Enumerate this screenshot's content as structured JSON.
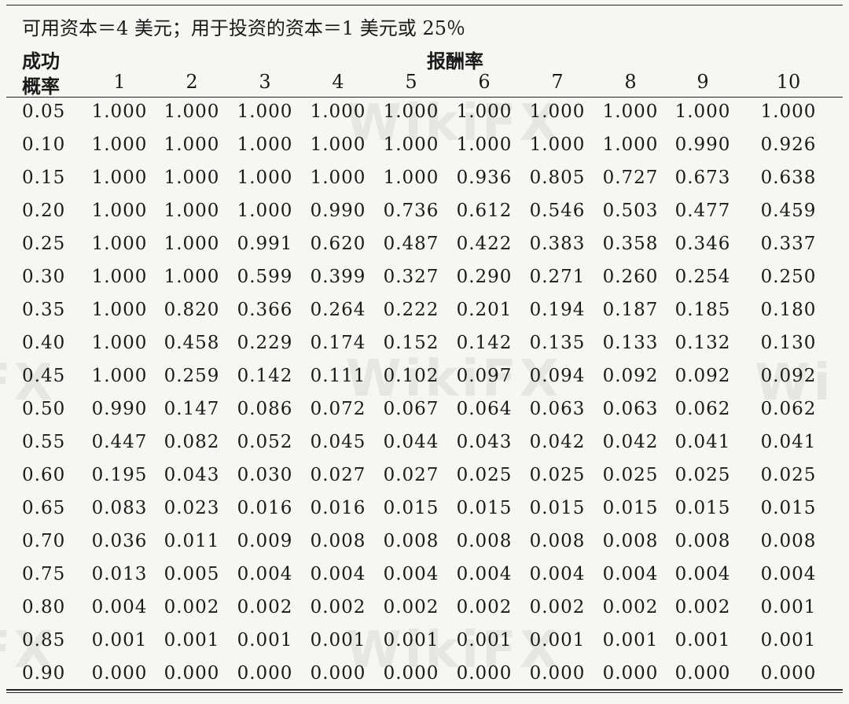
{
  "caption": "可用资本＝4 美元；用于投资的资本＝1 美元或 25％",
  "row_header": {
    "line1": "成功",
    "line2": "概率"
  },
  "column_group_label": "报酬率",
  "column_headers": [
    "1",
    "2",
    "3",
    "4",
    "5",
    "6",
    "7",
    "8",
    "9",
    "10"
  ],
  "rows": [
    {
      "prob": "0.05",
      "values": [
        "1.000",
        "1.000",
        "1.000",
        "1.000",
        "1.000",
        "1.000",
        "1.000",
        "1.000",
        "1.000",
        "1.000"
      ]
    },
    {
      "prob": "0.10",
      "values": [
        "1.000",
        "1.000",
        "1.000",
        "1.000",
        "1.000",
        "1.000",
        "1.000",
        "1.000",
        "0.990",
        "0.926"
      ]
    },
    {
      "prob": "0.15",
      "values": [
        "1.000",
        "1.000",
        "1.000",
        "1.000",
        "1.000",
        "0.936",
        "0.805",
        "0.727",
        "0.673",
        "0.638"
      ]
    },
    {
      "prob": "0.20",
      "values": [
        "1.000",
        "1.000",
        "1.000",
        "0.990",
        "0.736",
        "0.612",
        "0.546",
        "0.503",
        "0.477",
        "0.459"
      ]
    },
    {
      "prob": "0.25",
      "values": [
        "1.000",
        "1.000",
        "0.991",
        "0.620",
        "0.487",
        "0.422",
        "0.383",
        "0.358",
        "0.346",
        "0.337"
      ]
    },
    {
      "prob": "0.30",
      "values": [
        "1.000",
        "1.000",
        "0.599",
        "0.399",
        "0.327",
        "0.290",
        "0.271",
        "0.260",
        "0.254",
        "0.250"
      ]
    },
    {
      "prob": "0.35",
      "values": [
        "1.000",
        "0.820",
        "0.366",
        "0.264",
        "0.222",
        "0.201",
        "0.194",
        "0.187",
        "0.185",
        "0.180"
      ]
    },
    {
      "prob": "0.40",
      "values": [
        "1.000",
        "0.458",
        "0.229",
        "0.174",
        "0.152",
        "0.142",
        "0.135",
        "0.133",
        "0.132",
        "0.130"
      ]
    },
    {
      "prob": "0.45",
      "values": [
        "1.000",
        "0.259",
        "0.142",
        "0.111",
        "0.102",
        "0.097",
        "0.094",
        "0.092",
        "0.092",
        "0.092"
      ]
    },
    {
      "prob": "0.50",
      "values": [
        "0.990",
        "0.147",
        "0.086",
        "0.072",
        "0.067",
        "0.064",
        "0.063",
        "0.063",
        "0.062",
        "0.062"
      ]
    },
    {
      "prob": "0.55",
      "values": [
        "0.447",
        "0.082",
        "0.052",
        "0.045",
        "0.044",
        "0.043",
        "0.042",
        "0.042",
        "0.041",
        "0.041"
      ]
    },
    {
      "prob": "0.60",
      "values": [
        "0.195",
        "0.043",
        "0.030",
        "0.027",
        "0.027",
        "0.025",
        "0.025",
        "0.025",
        "0.025",
        "0.025"
      ]
    },
    {
      "prob": "0.65",
      "values": [
        "0.083",
        "0.023",
        "0.016",
        "0.016",
        "0.015",
        "0.015",
        "0.015",
        "0.015",
        "0.015",
        "0.015"
      ]
    },
    {
      "prob": "0.70",
      "values": [
        "0.036",
        "0.011",
        "0.009",
        "0.008",
        "0.008",
        "0.008",
        "0.008",
        "0.008",
        "0.008",
        "0.008"
      ]
    },
    {
      "prob": "0.75",
      "values": [
        "0.013",
        "0.005",
        "0.004",
        "0.004",
        "0.004",
        "0.004",
        "0.004",
        "0.004",
        "0.004",
        "0.004"
      ]
    },
    {
      "prob": "0.80",
      "values": [
        "0.004",
        "0.002",
        "0.002",
        "0.002",
        "0.002",
        "0.002",
        "0.002",
        "0.002",
        "0.002",
        "0.001"
      ]
    },
    {
      "prob": "0.85",
      "values": [
        "0.001",
        "0.001",
        "0.001",
        "0.001",
        "0.001",
        "0.001",
        "0.001",
        "0.001",
        "0.001",
        "0.001"
      ]
    },
    {
      "prob": "0.90",
      "values": [
        "0.000",
        "0.000",
        "0.000",
        "0.000",
        "0.000",
        "0.000",
        "0.000",
        "0.000",
        "0.000",
        "0.000"
      ]
    }
  ]
}
